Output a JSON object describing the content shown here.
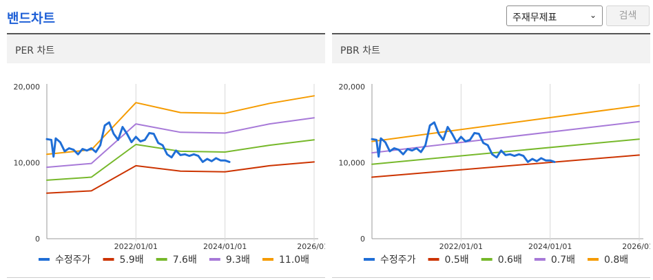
{
  "page_title": "밴드차트",
  "select": {
    "value": "주재무제표"
  },
  "search_button": "검색",
  "colors": {
    "title": "#1e5fd6",
    "price": "#1f6ed6",
    "band1": "#cc3300",
    "band2": "#76b82a",
    "band3": "#a779d8",
    "band4": "#f59b00"
  },
  "chart_data": [
    {
      "type": "line",
      "title": "PER 차트",
      "x_ticks": [
        "2022/01/01",
        "2024/01/01",
        "2026/01/"
      ],
      "y_ticks": [
        "20,000",
        "10,000",
        "0"
      ],
      "ylim": [
        0,
        20000
      ],
      "x_range": [
        2020.0,
        2026.0
      ],
      "series": [
        {
          "name": "수정주가",
          "color": "#1f6ed6",
          "x": [
            2020.0,
            2020.1,
            2020.15,
            2020.2,
            2020.3,
            2020.4,
            2020.5,
            2020.6,
            2020.7,
            2020.8,
            2020.9,
            2021.0,
            2021.1,
            2021.2,
            2021.3,
            2021.4,
            2021.5,
            2021.6,
            2021.7,
            2021.8,
            2021.9,
            2022.0,
            2022.1,
            2022.2,
            2022.3,
            2022.4,
            2022.5,
            2022.6,
            2022.7,
            2022.8,
            2022.9,
            2023.0,
            2023.1,
            2023.2,
            2023.3,
            2023.4,
            2023.5,
            2023.6,
            2023.7,
            2023.8,
            2023.9,
            2024.0,
            2024.1
          ],
          "values": [
            13100,
            13000,
            10800,
            13200,
            12700,
            11500,
            11900,
            11700,
            11100,
            11800,
            11600,
            11900,
            11400,
            12300,
            14900,
            15300,
            13800,
            13000,
            14700,
            13800,
            12700,
            13400,
            12800,
            13000,
            13900,
            13800,
            12600,
            12300,
            11100,
            10700,
            11600,
            11000,
            11100,
            10900,
            11100,
            10900,
            10100,
            10500,
            10200,
            10600,
            10300,
            10300,
            10100
          ]
        },
        {
          "name": "5.9배",
          "color": "#cc3300",
          "x": [
            2020.0,
            2021.0,
            2022.0,
            2023.0,
            2024.0,
            2025.0,
            2026.0
          ],
          "values": [
            6000,
            6300,
            9600,
            8900,
            8800,
            9600,
            10100
          ]
        },
        {
          "name": "7.6배",
          "color": "#76b82a",
          "x": [
            2020.0,
            2021.0,
            2022.0,
            2023.0,
            2024.0,
            2025.0,
            2026.0
          ],
          "values": [
            7700,
            8100,
            12400,
            11500,
            11400,
            12300,
            13000
          ]
        },
        {
          "name": "9.3배",
          "color": "#a779d8",
          "x": [
            2020.0,
            2021.0,
            2022.0,
            2023.0,
            2024.0,
            2025.0,
            2026.0
          ],
          "values": [
            9400,
            9900,
            15100,
            14000,
            13900,
            15100,
            15900
          ]
        },
        {
          "name": "11.0배",
          "color": "#f59b00",
          "x": [
            2020.0,
            2021.0,
            2022.0,
            2023.0,
            2024.0,
            2025.0,
            2026.0
          ],
          "values": [
            11100,
            11700,
            17900,
            16600,
            16500,
            17800,
            18800
          ]
        }
      ]
    },
    {
      "type": "line",
      "title": "PBR 차트",
      "x_ticks": [
        "2022/01/01",
        "2024/01/01",
        "2026/01/"
      ],
      "y_ticks": [
        "20,000",
        "10,000",
        "0"
      ],
      "ylim": [
        0,
        20000
      ],
      "x_range": [
        2020.0,
        2026.0
      ],
      "series": [
        {
          "name": "수정주가",
          "color": "#1f6ed6",
          "x": [
            2020.0,
            2020.1,
            2020.15,
            2020.2,
            2020.3,
            2020.4,
            2020.5,
            2020.6,
            2020.7,
            2020.8,
            2020.9,
            2021.0,
            2021.1,
            2021.2,
            2021.3,
            2021.4,
            2021.5,
            2021.6,
            2021.7,
            2021.8,
            2021.9,
            2022.0,
            2022.1,
            2022.2,
            2022.3,
            2022.4,
            2022.5,
            2022.6,
            2022.7,
            2022.8,
            2022.9,
            2023.0,
            2023.1,
            2023.2,
            2023.3,
            2023.4,
            2023.5,
            2023.6,
            2023.7,
            2023.8,
            2023.9,
            2024.0,
            2024.1
          ],
          "values": [
            13100,
            13000,
            10800,
            13200,
            12700,
            11500,
            11900,
            11700,
            11100,
            11800,
            11600,
            11900,
            11400,
            12300,
            14900,
            15300,
            13800,
            13000,
            14700,
            13800,
            12700,
            13400,
            12800,
            13000,
            13900,
            13800,
            12600,
            12300,
            11100,
            10700,
            11600,
            11000,
            11100,
            10900,
            11100,
            10900,
            10100,
            10500,
            10200,
            10600,
            10300,
            10300,
            10100
          ]
        },
        {
          "name": "0.5배",
          "color": "#cc3300",
          "x": [
            2020.0,
            2026.0
          ],
          "values": [
            8100,
            11000
          ]
        },
        {
          "name": "0.6배",
          "color": "#76b82a",
          "x": [
            2020.0,
            2026.0
          ],
          "values": [
            9800,
            13100
          ]
        },
        {
          "name": "0.7배",
          "color": "#a779d8",
          "x": [
            2020.0,
            2026.0
          ],
          "values": [
            11300,
            15400
          ]
        },
        {
          "name": "0.8배",
          "color": "#f59b00",
          "x": [
            2020.0,
            2026.0
          ],
          "values": [
            12800,
            17500
          ]
        }
      ]
    }
  ]
}
